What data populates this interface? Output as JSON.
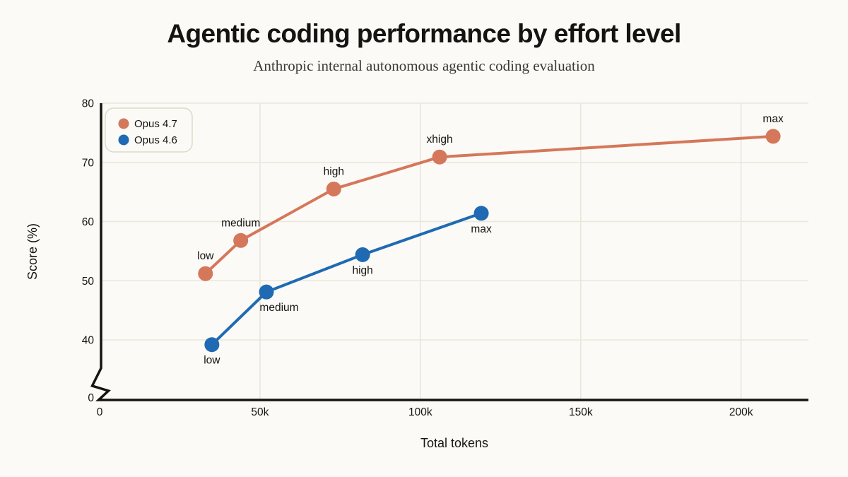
{
  "chart_data": {
    "type": "line",
    "title": "Agentic coding performance by effort level",
    "subtitle": "Anthropic internal autonomous agentic coding evaluation",
    "xlabel": "Total tokens",
    "ylabel": "Score (%)",
    "x_range": [
      0,
      221000
    ],
    "y_range_visible": [
      40,
      80
    ],
    "y_axis_break": {
      "enabled": true,
      "from": 0,
      "to": 40
    },
    "grid": true,
    "legend_position": "top-left",
    "x_ticks": [
      {
        "value": 0,
        "label": "0"
      },
      {
        "value": 50000,
        "label": "50k"
      },
      {
        "value": 100000,
        "label": "100k"
      },
      {
        "value": 150000,
        "label": "150k"
      },
      {
        "value": 200000,
        "label": "200k"
      }
    ],
    "y_ticks": [
      {
        "value": 80,
        "label": "80"
      },
      {
        "value": 70,
        "label": "70"
      },
      {
        "value": 60,
        "label": "60"
      },
      {
        "value": 50,
        "label": "50"
      },
      {
        "value": 40,
        "label": "40"
      },
      {
        "value": 0,
        "label": "0",
        "below_break": true
      }
    ],
    "series": [
      {
        "name": "Opus 4.7",
        "color": "#d5775a",
        "points": [
          {
            "x": 33000,
            "y": 51.2,
            "label": "low",
            "label_pos": "above"
          },
          {
            "x": 44000,
            "y": 56.8,
            "label": "medium",
            "label_pos": "above"
          },
          {
            "x": 73000,
            "y": 65.5,
            "label": "high",
            "label_pos": "above"
          },
          {
            "x": 106000,
            "y": 70.9,
            "label": "xhigh",
            "label_pos": "above"
          },
          {
            "x": 210000,
            "y": 74.4,
            "label": "max",
            "label_pos": "above"
          }
        ]
      },
      {
        "name": "Opus 4.6",
        "color": "#1f6ab3",
        "points": [
          {
            "x": 35000,
            "y": 39.2,
            "label": "low",
            "label_pos": "below"
          },
          {
            "x": 52000,
            "y": 48.1,
            "label": "medium",
            "label_pos": "below",
            "label_dx": 18
          },
          {
            "x": 82000,
            "y": 54.4,
            "label": "high",
            "label_pos": "below"
          },
          {
            "x": 119000,
            "y": 61.4,
            "label": "max",
            "label_pos": "below"
          }
        ]
      }
    ],
    "colors": {
      "background": "#fbfaf6",
      "grid": "#e9e6da",
      "axis": "#141413",
      "subtitle_text": "#3b3933",
      "legend_border": "#ddd9ca"
    }
  }
}
